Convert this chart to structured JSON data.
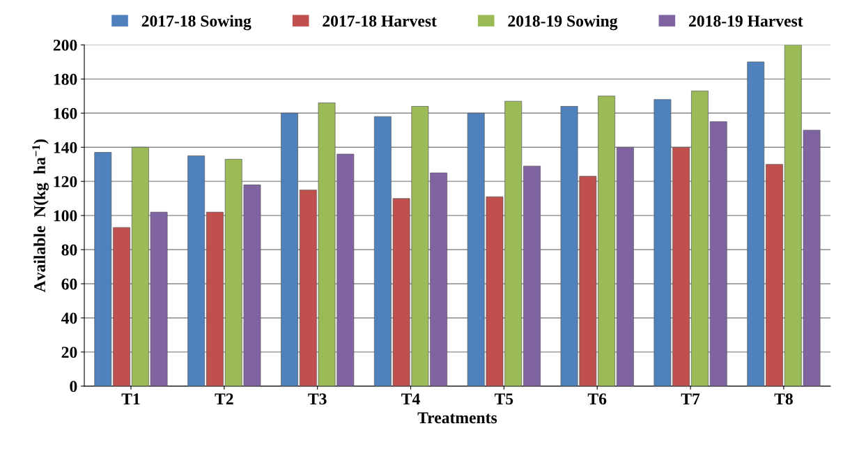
{
  "chart_data": {
    "type": "bar",
    "xlabel": "Treatments",
    "ylabel": "Available  N(kg  ha$^{−1}$)",
    "categories": [
      "T1",
      "T2",
      "T3",
      "T4",
      "T5",
      "T6",
      "T7",
      "T8"
    ],
    "series": [
      {
        "name": "2017-18 Sowing",
        "color": "#4f81bd",
        "values": [
          137,
          135,
          160,
          158,
          160,
          164,
          168,
          190
        ]
      },
      {
        "name": "2017-18 Harvest",
        "color": "#c0504d",
        "values": [
          93,
          102,
          115,
          110,
          111,
          123,
          140,
          130
        ]
      },
      {
        "name": "2018-19 Sowing",
        "color": "#9bbb59",
        "values": [
          140,
          133,
          166,
          164,
          167,
          170,
          173,
          200
        ]
      },
      {
        "name": "2018-19 Harvest",
        "color": "#8064a2",
        "values": [
          102,
          118,
          136,
          125,
          129,
          140,
          155,
          150
        ]
      }
    ],
    "ylim": [
      0,
      200
    ],
    "yticks": [
      0,
      20,
      40,
      60,
      80,
      100,
      120,
      140,
      160,
      180,
      200
    ],
    "grid": "y",
    "legend": "top"
  }
}
